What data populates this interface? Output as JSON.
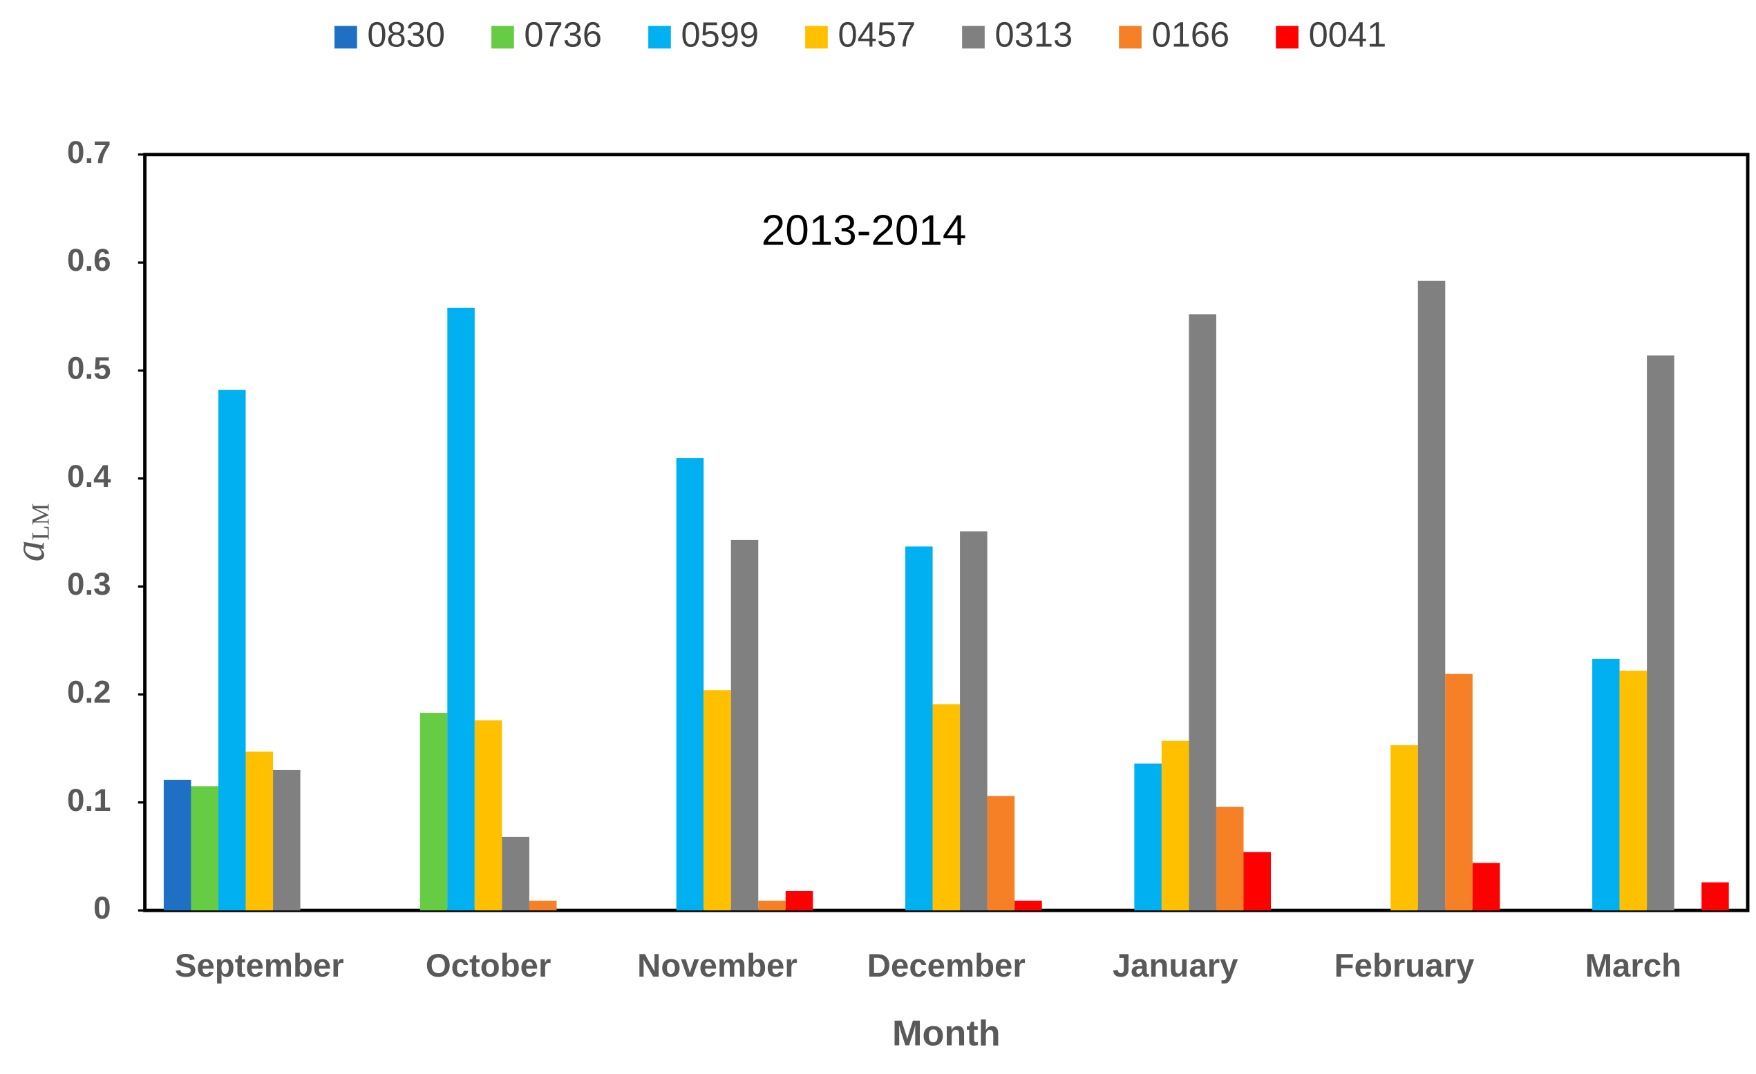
{
  "chart_data": {
    "type": "bar",
    "annotation": "2013-2014",
    "x_label": "Month",
    "y_label": "a",
    "y_label_subscript": "LM",
    "categories": [
      "September",
      "October",
      "November",
      "December",
      "January",
      "February",
      "March"
    ],
    "series": [
      {
        "name": "0830",
        "color": "#1f6fc5",
        "values": [
          0.121,
          0,
          0,
          0,
          0,
          0,
          0
        ]
      },
      {
        "name": "0736",
        "color": "#66cc44",
        "values": [
          0.115,
          0.183,
          0,
          0,
          0,
          0,
          0
        ]
      },
      {
        "name": "0599",
        "color": "#00b0f0",
        "values": [
          0.482,
          0.558,
          0.419,
          0.337,
          0.136,
          0,
          0.233
        ]
      },
      {
        "name": "0457",
        "color": "#ffc000",
        "values": [
          0.147,
          0.176,
          0.204,
          0.191,
          0.157,
          0.153,
          0.222
        ]
      },
      {
        "name": "0313",
        "color": "#808080",
        "values": [
          0.13,
          0.068,
          0.343,
          0.351,
          0.552,
          0.583,
          0.514
        ]
      },
      {
        "name": "0166",
        "color": "#f58025",
        "values": [
          0,
          0.009,
          0.009,
          0.106,
          0.096,
          0.219,
          0
        ]
      },
      {
        "name": "0041",
        "color": "#ff0000",
        "values": [
          0,
          0,
          0.018,
          0.009,
          0.054,
          0.044,
          0.026
        ]
      }
    ],
    "ylim": [
      0,
      0.7
    ],
    "yticks": [
      0,
      0.1,
      0.2,
      0.3,
      0.4,
      0.5,
      0.6,
      0.7
    ],
    "grid": false,
    "legend_position": "top"
  }
}
